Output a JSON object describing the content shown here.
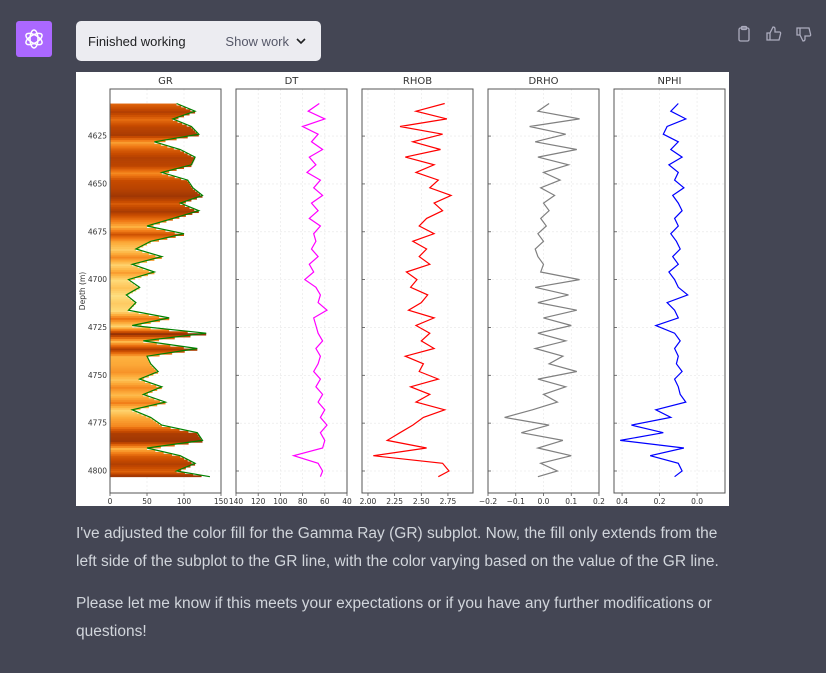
{
  "header": {
    "status": "Finished working",
    "show_work_label": "Show work",
    "icons": [
      "openai-logo-icon",
      "chevron-down-icon",
      "clipboard-icon",
      "thumbs-up-icon",
      "thumbs-down-icon"
    ]
  },
  "message": {
    "paragraphs": [
      "I've adjusted the color fill for the Gamma Ray (GR) subplot. Now, the fill only extends from the left side of the subplot to the GR line, with the color varying based on the value of the GR line.",
      "Please let me know if this meets your expectations or if you have any further modifications or questions!"
    ]
  },
  "chart_data": {
    "type": "line",
    "ylabel": "Depth (m)",
    "ylim": [
      4811.5,
      4600.4
    ],
    "yticks": [
      4625,
      4650,
      4675,
      4700,
      4725,
      4750,
      4775,
      4800
    ],
    "depth": [
      4608,
      4612,
      4616,
      4620,
      4624,
      4628,
      4632,
      4636,
      4640,
      4644,
      4648,
      4652,
      4656,
      4660,
      4664,
      4668,
      4672,
      4676,
      4680,
      4684,
      4688,
      4692,
      4696,
      4700,
      4704,
      4708,
      4712,
      4716,
      4720,
      4724,
      4728,
      4732,
      4736,
      4740,
      4744,
      4748,
      4752,
      4756,
      4760,
      4764,
      4768,
      4772,
      4776,
      4780,
      4784,
      4788,
      4792,
      4796,
      4800,
      4803
    ],
    "tracks": [
      {
        "name": "GR",
        "color": "#008000",
        "xlim": [
          0,
          150
        ],
        "xticks": [
          "0",
          "50",
          "100",
          "150"
        ],
        "tickvals": [
          0,
          50,
          100,
          150
        ],
        "fill": "colormap",
        "values": [
          90,
          115,
          85,
          110,
          120,
          60,
          95,
          115,
          110,
          70,
          105,
          112,
          125,
          95,
          120,
          85,
          50,
          100,
          55,
          35,
          70,
          30,
          60,
          25,
          40,
          22,
          35,
          25,
          80,
          30,
          130,
          45,
          118,
          50,
          55,
          65,
          40,
          70,
          45,
          75,
          30,
          55,
          70,
          118,
          125,
          50,
          95,
          115,
          90,
          135
        ]
      },
      {
        "name": "DT",
        "color": "#ff00ff",
        "xlim": [
          140,
          40
        ],
        "xticks": [
          "140",
          "120",
          "100",
          "80",
          "60",
          "40"
        ],
        "tickvals": [
          140,
          120,
          100,
          80,
          60,
          40
        ],
        "values": [
          65,
          75,
          60,
          80,
          66,
          72,
          62,
          74,
          68,
          76,
          64,
          70,
          62,
          72,
          66,
          74,
          64,
          70,
          68,
          72,
          66,
          74,
          70,
          78,
          68,
          64,
          66,
          58,
          70,
          68,
          66,
          62,
          68,
          64,
          66,
          70,
          64,
          68,
          62,
          66,
          60,
          64,
          58,
          64,
          60,
          62,
          88,
          66,
          62,
          64
        ]
      },
      {
        "name": "RHOB",
        "color": "#ff0000",
        "xlim": [
          1.944,
          2.985
        ],
        "xticks": [
          "2.00",
          "2.25",
          "2.50",
          "2.75"
        ],
        "tickvals": [
          2.0,
          2.25,
          2.5,
          2.75
        ],
        "values": [
          2.72,
          2.45,
          2.74,
          2.3,
          2.7,
          2.42,
          2.68,
          2.35,
          2.62,
          2.45,
          2.66,
          2.58,
          2.78,
          2.62,
          2.7,
          2.55,
          2.48,
          2.62,
          2.42,
          2.55,
          2.48,
          2.58,
          2.36,
          2.46,
          2.4,
          2.56,
          2.5,
          2.38,
          2.62,
          2.45,
          2.58,
          2.5,
          2.62,
          2.35,
          2.52,
          2.48,
          2.66,
          2.4,
          2.58,
          2.45,
          2.72,
          2.52,
          2.42,
          2.3,
          2.18,
          2.55,
          2.05,
          2.7,
          2.76,
          2.66
        ]
      },
      {
        "name": "DRHO",
        "color": "#808080",
        "xlim": [
          -0.2,
          0.2
        ],
        "xticks": [
          "−0.2",
          "−0.1",
          "0.0",
          "0.1",
          "0.2"
        ],
        "tickvals": [
          -0.2,
          -0.1,
          0.0,
          0.1,
          0.2
        ],
        "values": [
          0.02,
          -0.02,
          0.13,
          -0.05,
          0.08,
          -0.03,
          0.12,
          -0.02,
          0.09,
          0.0,
          0.06,
          -0.01,
          0.04,
          0.0,
          0.02,
          -0.01,
          0.01,
          -0.02,
          0.0,
          -0.03,
          -0.02,
          0.0,
          -0.01,
          0.13,
          -0.03,
          0.09,
          -0.02,
          0.12,
          0.0,
          0.1,
          -0.02,
          0.08,
          -0.03,
          0.07,
          0.02,
          0.12,
          -0.02,
          0.08,
          0.0,
          0.05,
          -0.04,
          -0.14,
          0.02,
          -0.08,
          0.07,
          -0.02,
          0.1,
          -0.01,
          0.05,
          -0.02
        ]
      },
      {
        "name": "NPHI",
        "color": "#0000ff",
        "xlim": [
          0.443,
          -0.149
        ],
        "xticks": [
          "0.4",
          "0.2",
          "0.0"
        ],
        "tickvals": [
          0.4,
          0.2,
          0.0
        ],
        "values": [
          0.1,
          0.14,
          0.06,
          0.16,
          0.18,
          0.1,
          0.14,
          0.08,
          0.15,
          0.1,
          0.12,
          0.07,
          0.13,
          0.1,
          0.08,
          0.12,
          0.1,
          0.14,
          0.11,
          0.09,
          0.13,
          0.1,
          0.15,
          0.12,
          0.1,
          0.05,
          0.16,
          0.12,
          0.1,
          0.22,
          0.12,
          0.09,
          0.12,
          0.1,
          0.11,
          0.08,
          0.12,
          0.1,
          0.09,
          0.06,
          0.22,
          0.14,
          0.35,
          0.18,
          0.41,
          0.07,
          0.25,
          0.1,
          0.08,
          0.12
        ]
      }
    ]
  }
}
